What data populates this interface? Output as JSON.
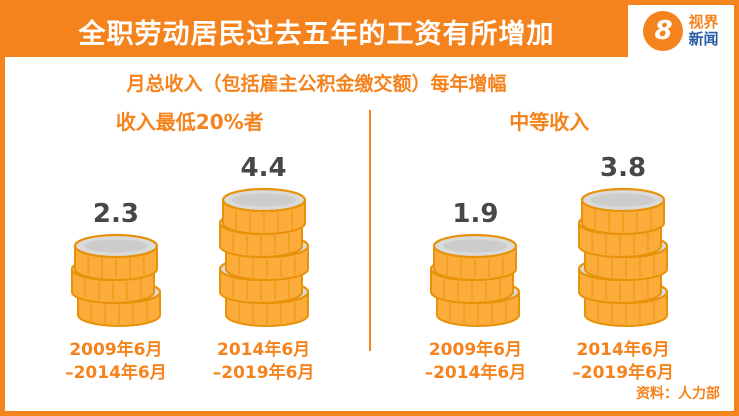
{
  "logo": {
    "number": "8",
    "line1": "视界",
    "line2": "新闻"
  },
  "colors": {
    "accent": "#F5831D",
    "value_text": "#474747",
    "logo_blue": "#2B5CA8",
    "coin": {
      "gold": "#FBAC3A",
      "gold_dark": "#E8920A",
      "top": "#DADADA",
      "top_inner": "#C9C9C9"
    }
  },
  "chart_data": {
    "type": "bar",
    "title": "全职劳动居民过去五年的工资有所增加",
    "subtitle": "月总收入（包括雇主公积金缴交额）每年增幅",
    "legend_position": "none",
    "grid": false,
    "groups": [
      {
        "label": "收入最低20%者",
        "points": [
          {
            "period_lines": [
              "2009年6月",
              "–2014年6月"
            ],
            "value": 2.3
          },
          {
            "period_lines": [
              "2014年6月",
              "–2019年6月"
            ],
            "value": 4.4
          }
        ]
      },
      {
        "label": "中等收入",
        "points": [
          {
            "period_lines": [
              "2009年6月",
              "–2014年6月"
            ],
            "value": 1.9
          },
          {
            "period_lines": [
              "2014年6月",
              "–2019年6月"
            ],
            "value": 3.8
          }
        ]
      }
    ],
    "source": "资料：人力部"
  }
}
